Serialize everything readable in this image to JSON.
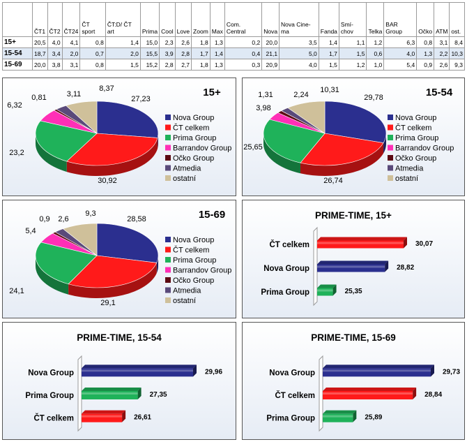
{
  "table": {
    "columns": [
      "ČT1",
      "ČT2",
      "ČT24",
      "ČT sport",
      "ČT:D/ ČT art",
      "Prima",
      "Cool",
      "Love",
      "Zoom",
      "Max",
      "Com. Central",
      "Nova",
      "Nova Cine-ma",
      "Fanda",
      "Smí-chov",
      "Telka",
      "BAR Group",
      "Očko",
      "ATM",
      "ost."
    ],
    "rows": [
      {
        "label": "15+",
        "values": [
          "20,5",
          "4,0",
          "4,1",
          "0,8",
          "1,4",
          "15,0",
          "2,3",
          "2,6",
          "1,8",
          "1,3",
          "0,2",
          "20,0",
          "3,5",
          "1,4",
          "1,1",
          "1,2",
          "6,3",
          "0,8",
          "3,1",
          "8,4"
        ]
      },
      {
        "label": "15-54",
        "values": [
          "18,7",
          "3,4",
          "2,0",
          "0,7",
          "2,0",
          "15,5",
          "3,9",
          "2,8",
          "1,7",
          "1,4",
          "0,4",
          "21,1",
          "5,0",
          "1,7",
          "1,5",
          "0,6",
          "4,0",
          "1,3",
          "2,2",
          "10,3"
        ]
      },
      {
        "label": "15-69",
        "values": [
          "20,0",
          "3,8",
          "3,1",
          "0,8",
          "1,5",
          "15,2",
          "2,8",
          "2,7",
          "1,8",
          "1,3",
          "0,3",
          "20,9",
          "4,0",
          "1,5",
          "1,2",
          "1,0",
          "5,4",
          "0,9",
          "2,6",
          "9,3"
        ]
      }
    ]
  },
  "colors": {
    "Nova Group": "#2b2f8f",
    "ČT celkem": "#ff1a1a",
    "Prima Group": "#1fb25a",
    "Barrandov Group": "#ff2fb6",
    "Očko Group": "#5c0a12",
    "Atmedia": "#5a4a7a",
    "ostatní": "#cfc09a"
  },
  "chart_data": [
    {
      "type": "pie",
      "title": "15+",
      "labels": [
        "Nova Group",
        "ČT celkem",
        "Prima Group",
        "Barrandov Group",
        "Očko Group",
        "Atmedia",
        "ostatní"
      ],
      "values": [
        27.23,
        30.92,
        23.2,
        6.32,
        0.81,
        3.11,
        8.37
      ],
      "value_labels": [
        "27,23",
        "30,92",
        "23,2",
        "6,32",
        "0,81",
        "3,11",
        "8,37"
      ],
      "legend": "right"
    },
    {
      "type": "pie",
      "title": "15-54",
      "labels": [
        "Nova Group",
        "ČT celkem",
        "Prima Group",
        "Barrandov Group",
        "Očko Group",
        "Atmedia",
        "ostatní"
      ],
      "values": [
        29.78,
        26.74,
        25.65,
        3.98,
        1.31,
        2.24,
        10.31
      ],
      "value_labels": [
        "29,78",
        "26,74",
        "25,65",
        "3,98",
        "1,31",
        "2,24",
        "10,31"
      ],
      "legend": "right"
    },
    {
      "type": "pie",
      "title": "15-69",
      "labels": [
        "Nova Group",
        "ČT celkem",
        "Prima Group",
        "Barrandov Group",
        "Očko Group",
        "Atmedia",
        "ostatní"
      ],
      "values": [
        28.58,
        29.1,
        24.1,
        5.4,
        0.9,
        2.6,
        9.3
      ],
      "value_labels": [
        "28,58",
        "29,1",
        "24,1",
        "5,4",
        "0,9",
        "2,6",
        "9,3"
      ],
      "legend": "right"
    },
    {
      "type": "bar",
      "title": "PRIME-TIME, 15+",
      "categories": [
        "ČT celkem",
        "Nova Group",
        "Prima Group"
      ],
      "values": [
        30.07,
        28.82,
        25.35
      ],
      "value_labels": [
        "30,07",
        "28,82",
        "25,35"
      ]
    },
    {
      "type": "bar",
      "title": "PRIME-TIME, 15-54",
      "categories": [
        "Nova Group",
        "Prima Group",
        "ČT celkem"
      ],
      "values": [
        29.96,
        27.35,
        26.61
      ],
      "value_labels": [
        "29,96",
        "27,35",
        "26,61"
      ]
    },
    {
      "type": "bar",
      "title": "PRIME-TIME, 15-69",
      "categories": [
        "Nova Group",
        "ČT celkem",
        "Prima Group"
      ],
      "values": [
        29.73,
        28.84,
        25.89
      ],
      "value_labels": [
        "29,73",
        "28,84",
        "25,89"
      ]
    }
  ]
}
